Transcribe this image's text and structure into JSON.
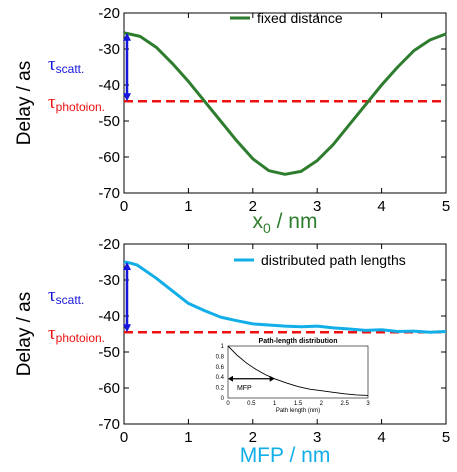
{
  "chart_data": [
    {
      "type": "line",
      "xlabel_main": "x",
      "xlabel_sub": "0",
      "xlabel_rest": " / nm",
      "ylabel": "Delay / as",
      "xlim": [
        0,
        5
      ],
      "ylim": [
        -70,
        -20
      ],
      "xticks": [
        "0",
        "1",
        "2",
        "3",
        "4",
        "5"
      ],
      "yticks": [
        "-20",
        "-30",
        "-40",
        "-50",
        "-60",
        "-70"
      ],
      "grid": false,
      "legend_position": "top-right",
      "colors": {
        "line": "#2e7d2e",
        "reference": "#ee1111",
        "arrow": "#1616dd",
        "xlabel": "#2e7d2e"
      },
      "series": [
        {
          "name": "fixed distance",
          "x": [
            0,
            0.25,
            0.5,
            0.75,
            1.0,
            1.25,
            1.5,
            1.75,
            2.0,
            2.25,
            2.5,
            2.75,
            3.0,
            3.25,
            3.5,
            3.75,
            4.0,
            4.25,
            4.5,
            4.75,
            5.0
          ],
          "y": [
            -25.5,
            -26.5,
            -29.5,
            -34.0,
            -39.0,
            -44.5,
            -50.0,
            -55.5,
            -60.5,
            -63.8,
            -64.8,
            -64.0,
            -61.0,
            -56.5,
            -51.0,
            -45.5,
            -40.0,
            -35.0,
            -30.5,
            -27.5,
            -25.8
          ]
        }
      ],
      "reference": {
        "label_tau": "τ",
        "label_sub": "photoion.",
        "y": -44.5
      },
      "arrow": {
        "label_tau": "τ",
        "label_sub": "scatt.",
        "y_from": -25.5,
        "y_to": -44.5
      }
    },
    {
      "type": "line",
      "xlabel": "MFP / nm",
      "ylabel": "Delay / as",
      "xlim": [
        0,
        5
      ],
      "ylim": [
        -70,
        -20
      ],
      "xticks": [
        "0",
        "1",
        "2",
        "3",
        "4",
        "5"
      ],
      "yticks": [
        "-20",
        "-30",
        "-40",
        "-50",
        "-60",
        "-70"
      ],
      "grid": false,
      "legend_position": "top-right",
      "colors": {
        "line": "#12aee8",
        "reference": "#ee1111",
        "arrow": "#1616dd",
        "xlabel": "#12aee8"
      },
      "series": [
        {
          "name": "distributed path lengths",
          "x": [
            0,
            0.1,
            0.2,
            0.3,
            0.5,
            0.75,
            1.0,
            1.25,
            1.5,
            1.75,
            2.0,
            2.25,
            2.5,
            2.75,
            3.0,
            3.25,
            3.5,
            3.75,
            4.0,
            4.25,
            4.5,
            4.75,
            5.0
          ],
          "y": [
            -25.0,
            -25.3,
            -25.8,
            -27.0,
            -29.5,
            -33.0,
            -36.5,
            -38.5,
            -40.3,
            -41.3,
            -42.2,
            -42.5,
            -42.8,
            -43.0,
            -42.8,
            -43.3,
            -43.6,
            -44.0,
            -43.8,
            -44.3,
            -44.2,
            -44.5,
            -44.3
          ]
        }
      ],
      "reference": {
        "label_tau": "τ",
        "label_sub": "photoion.",
        "y": -44.5
      },
      "arrow": {
        "label_tau": "τ",
        "label_sub": "scatt.",
        "y_from": -25.0,
        "y_to": -44.5
      },
      "inset": {
        "type": "line",
        "title": "Path-length distribution",
        "xlabel": "Path length (nm)",
        "xlim": [
          0,
          3
        ],
        "ylim": [
          0,
          1
        ],
        "xticks": [
          "0",
          "0.5",
          "1",
          "1.5",
          "2",
          "2.5",
          "3"
        ],
        "yticks": [
          "0",
          "0.2",
          "0.4",
          "0.6",
          "0.8",
          "1"
        ],
        "annotation": "MFP",
        "annotation_y": 0.37,
        "annotation_x_to": 1,
        "curve_x": [
          0,
          0.2,
          0.4,
          0.6,
          0.8,
          1.0,
          1.25,
          1.5,
          1.75,
          2.0,
          2.25,
          2.5,
          2.75,
          3.0
        ],
        "curve_y": [
          1.0,
          0.82,
          0.67,
          0.55,
          0.45,
          0.37,
          0.29,
          0.22,
          0.17,
          0.14,
          0.11,
          0.08,
          0.06,
          0.05
        ]
      }
    }
  ]
}
